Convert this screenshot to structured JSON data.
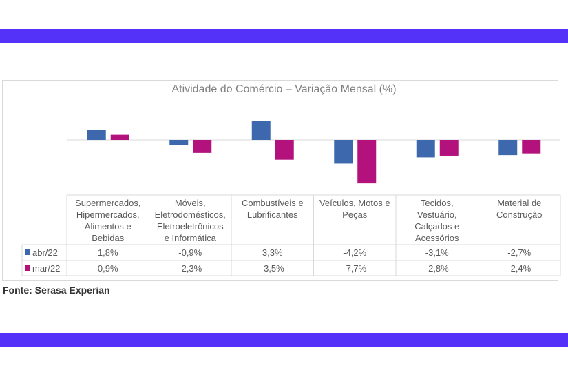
{
  "colors": {
    "band": "#5532f8",
    "series1": "#3d68ad",
    "series2": "#b3127d"
  },
  "chart_data": {
    "type": "bar",
    "title": "Atividade do Comércio – Variação Mensal (%)",
    "categories": [
      "Supermercados, Hipermercados, Alimentos e Bebidas",
      "Móveis, Eletrodomésticos, Eletroeletrônicos e Informática",
      "Combustíveis e Lubrificantes",
      "Veículos, Motos e Peças",
      "Tecidos, Vestuário, Calçados e Acessórios",
      "Material de Construção"
    ],
    "category_lines": [
      [
        "Supermercados,",
        "Hipermercados,",
        "Alimentos e",
        "Bebidas"
      ],
      [
        "Móveis,",
        "Eletrodomésticos,",
        "Eletroeletrônicos",
        "e Informática"
      ],
      [
        "Combustíveis e",
        "Lubrificantes"
      ],
      [
        "Veículos, Motos e",
        "Peças"
      ],
      [
        "Tecidos,",
        "Vestuário,",
        "Calçados e",
        "Acessórios"
      ],
      [
        "Material de",
        "Construção"
      ]
    ],
    "series": [
      {
        "name": "abr/22",
        "values": [
          1.8,
          -0.9,
          3.3,
          -4.2,
          -3.1,
          -2.7
        ],
        "labels": [
          "1,8%",
          "-0,9%",
          "3,3%",
          "-4,2%",
          "-3,1%",
          "-2,7%"
        ]
      },
      {
        "name": "mar/22",
        "values": [
          0.9,
          -2.3,
          -3.5,
          -7.7,
          -2.8,
          -2.4
        ],
        "labels": [
          "0,9%",
          "-2,3%",
          "-3,5%",
          "-7,7%",
          "-2,8%",
          "-2,4%"
        ]
      }
    ],
    "data_table": true,
    "grid": false,
    "legend": "data-table"
  },
  "source": "Fonte: Serasa Experian"
}
